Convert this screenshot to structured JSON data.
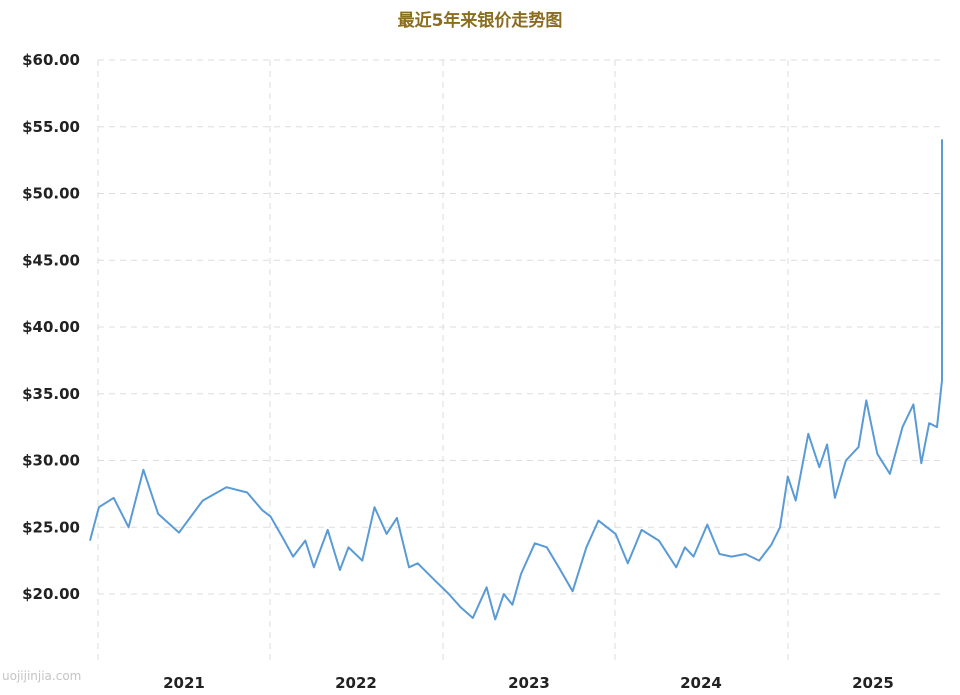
{
  "chart_data": {
    "type": "line",
    "title": "最近5年来银价走势图",
    "xlabel": "",
    "ylabel": "",
    "x_ticks": [
      "2021",
      "2022",
      "2023",
      "2024",
      "2025"
    ],
    "y_ticks": [
      "$20.00",
      "$25.00",
      "$30.00",
      "$35.00",
      "$40.00",
      "$45.00",
      "$50.00",
      "$55.00",
      "$60.00"
    ],
    "ylim": [
      17,
      60
    ],
    "xlim": [
      2020.4,
      2025.45
    ],
    "grid": true,
    "line_color": "#5b9bd5",
    "watermark": "uojijinjia.com",
    "series": [
      {
        "x": [
          2020.42,
          2020.45,
          2020.5,
          2020.55,
          2020.6,
          2020.65,
          2020.72,
          2020.8,
          2020.88,
          2020.95,
          2021.0,
          2021.05,
          2021.12,
          2021.18,
          2021.25,
          2021.3,
          2021.38,
          2021.45,
          2021.5,
          2021.58,
          2021.65,
          2021.72,
          2021.78,
          2021.85,
          2021.9,
          2022.0,
          2022.08,
          2022.15,
          2022.22,
          2022.3,
          2022.35,
          2022.4,
          2022.45,
          2022.5,
          2022.58,
          2022.65,
          2022.72,
          2022.8,
          2022.88,
          2022.95,
          2023.05,
          2023.12,
          2023.2,
          2023.3,
          2023.4,
          2023.45,
          2023.5,
          2023.58,
          2023.65,
          2023.72,
          2023.8,
          2023.88,
          2023.95,
          2024.0,
          2024.05,
          2024.1,
          2024.18,
          2024.25,
          2024.3,
          2024.35,
          2024.42,
          2024.5,
          2024.55,
          2024.62,
          2024.7,
          2024.78,
          2024.85,
          2024.9,
          2024.95,
          2025.0,
          2025.05,
          2025.1,
          2025.15,
          2025.2,
          2025.25,
          2025.3,
          2025.35,
          2025.38,
          2025.4,
          2025.42,
          2025.44
        ],
        "y": [
          24.0,
          26.5,
          27.2,
          25.0,
          29.3,
          26.0,
          24.6,
          27.0,
          28.0,
          27.6,
          26.3,
          25.8,
          24.2,
          22.8,
          24.0,
          22.0,
          24.8,
          21.8,
          23.5,
          22.5,
          26.5,
          24.5,
          25.7,
          22.0,
          22.3,
          21.0,
          20.0,
          19.0,
          18.2,
          20.5,
          18.1,
          20.0,
          19.2,
          21.5,
          23.8,
          23.5,
          22.0,
          20.2,
          23.5,
          25.5,
          24.5,
          22.3,
          24.8,
          24.0,
          22.0,
          23.5,
          22.8,
          25.2,
          23.0,
          22.8,
          23.0,
          22.5,
          23.7,
          25.0,
          28.8,
          27.0,
          32.0,
          29.5,
          31.2,
          27.2,
          30.0,
          31.0,
          34.5,
          30.5,
          29.0,
          32.5,
          34.2,
          29.8,
          32.8,
          32.5,
          36.0,
          38.0,
          37.5,
          39.5,
          44.0,
          50.2,
          54.0,
          48.0,
          52.5,
          49.0,
          50.8
        ]
      }
    ]
  }
}
